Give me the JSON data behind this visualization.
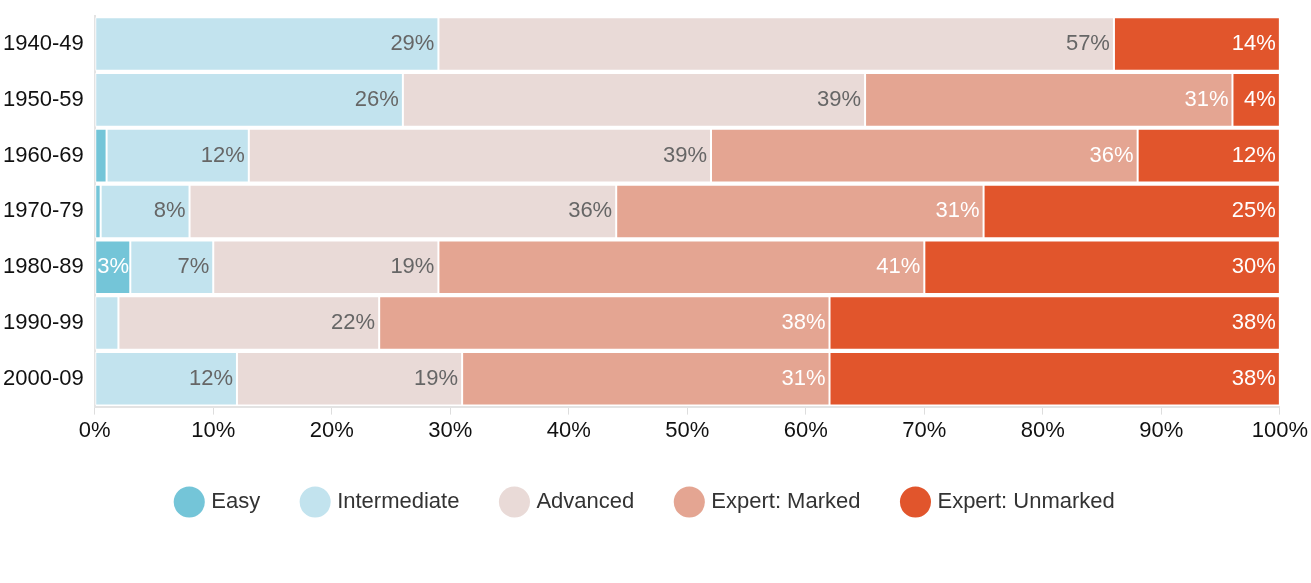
{
  "chart_data": {
    "type": "bar",
    "orientation": "horizontal",
    "stacked": true,
    "legend": "bottom",
    "grid": false,
    "categories": [
      "1940-49",
      "1950-59",
      "1960-69",
      "1970-79",
      "1980-89",
      "1990-99",
      "2000-09"
    ],
    "xlim": [
      0,
      100
    ],
    "xticks": [
      {
        "value": 0,
        "label": "0%"
      },
      {
        "value": 10,
        "label": "10%"
      },
      {
        "value": 20,
        "label": "20%"
      },
      {
        "value": 30,
        "label": "30%"
      },
      {
        "value": 40,
        "label": "40%"
      },
      {
        "value": 50,
        "label": "50%"
      },
      {
        "value": 60,
        "label": "60%"
      },
      {
        "value": 70,
        "label": "70%"
      },
      {
        "value": 80,
        "label": "80%"
      },
      {
        "value": 90,
        "label": "90%"
      },
      {
        "value": 100,
        "label": "100%"
      }
    ],
    "series": [
      {
        "name": "Easy",
        "color": "#74c5d8",
        "values": [
          0,
          0,
          1,
          0.5,
          3,
          0,
          0
        ],
        "value_labels": [
          null,
          null,
          null,
          null,
          "3%",
          null,
          null
        ]
      },
      {
        "name": "Intermediate",
        "color": "#c2e3ee",
        "values": [
          29,
          26,
          12,
          7.5,
          7,
          2,
          12
        ],
        "value_labels": [
          "29%",
          "26%",
          "12%",
          "8%",
          "7%",
          null,
          "12%"
        ]
      },
      {
        "name": "Advanced",
        "color": "#e9dad7",
        "values": [
          57,
          39,
          39,
          36,
          19,
          22,
          19
        ],
        "value_labels": [
          "57%",
          "39%",
          "39%",
          "36%",
          "19%",
          "22%",
          "19%"
        ]
      },
      {
        "name": "Expert: Marked",
        "color": "#e4a592",
        "values": [
          0,
          31,
          36,
          31,
          41,
          38,
          31
        ],
        "value_labels": [
          null,
          "31%",
          "36%",
          "31%",
          "41%",
          "38%",
          "31%"
        ]
      },
      {
        "name": "Expert: Unmarked",
        "color": "#e1552c",
        "values": [
          14,
          4,
          12,
          25,
          30,
          38,
          38
        ],
        "value_labels": [
          "14%",
          "4%",
          "12%",
          "25%",
          "30%",
          "38%",
          "38%"
        ]
      }
    ]
  }
}
